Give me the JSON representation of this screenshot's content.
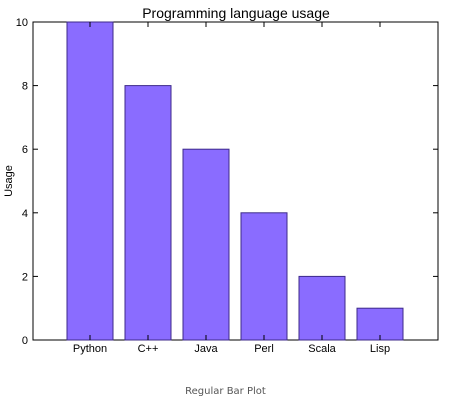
{
  "chart_data": {
    "type": "bar",
    "title": "Programming language usage",
    "xlabel": "",
    "ylabel": "Usage",
    "categories": [
      "Python",
      "C++",
      "Java",
      "Perl",
      "Scala",
      "Lisp"
    ],
    "values": [
      10,
      8,
      6,
      4,
      2,
      1
    ],
    "ylim": [
      0,
      10
    ],
    "yticks": [
      0,
      2,
      4,
      6,
      8,
      10
    ],
    "bar_color": "#8a6cff",
    "bar_edge_color": "#3d2a8a",
    "grid": false,
    "legend": "none"
  },
  "caption": "Regular Bar Plot"
}
